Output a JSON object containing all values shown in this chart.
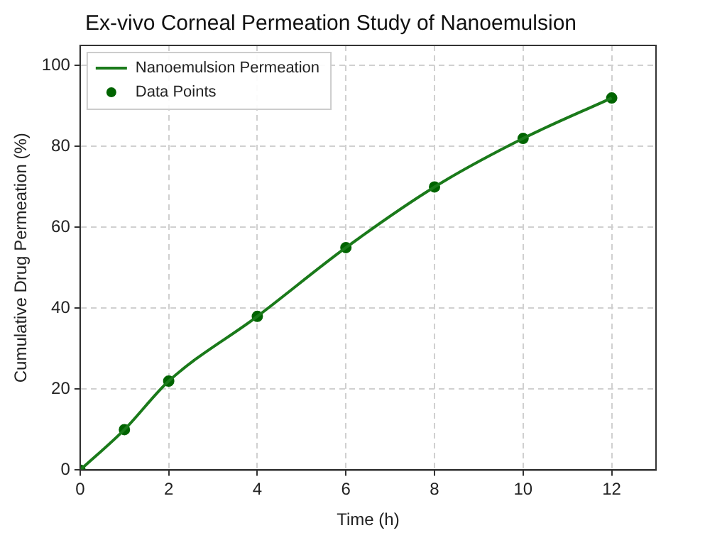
{
  "chart_data": {
    "type": "line",
    "title": "Ex-vivo Corneal Permeation Study of Nanoemulsion",
    "xlabel": "Time (h)",
    "ylabel": "Cumulative Drug Permeation (%)",
    "x": [
      0,
      1,
      2,
      4,
      6,
      8,
      10,
      12
    ],
    "series": [
      {
        "name": "Nanoemulsion Permeation",
        "type": "line",
        "color": "#1a7a1a",
        "marker": "none",
        "values": [
          0,
          10,
          22,
          38,
          55,
          70,
          82,
          92
        ]
      },
      {
        "name": "Data Points",
        "type": "scatter",
        "color": "#006400",
        "marker": "circle",
        "values": [
          0,
          10,
          22,
          38,
          55,
          70,
          82,
          92
        ]
      }
    ],
    "xlim": [
      0,
      13
    ],
    "xticks": [
      0,
      2,
      4,
      6,
      8,
      10,
      12
    ],
    "ylim": [
      0,
      105
    ],
    "yticks": [
      0,
      20,
      40,
      60,
      80,
      100
    ],
    "grid": true,
    "legend": "top left",
    "line_style": "solid"
  }
}
